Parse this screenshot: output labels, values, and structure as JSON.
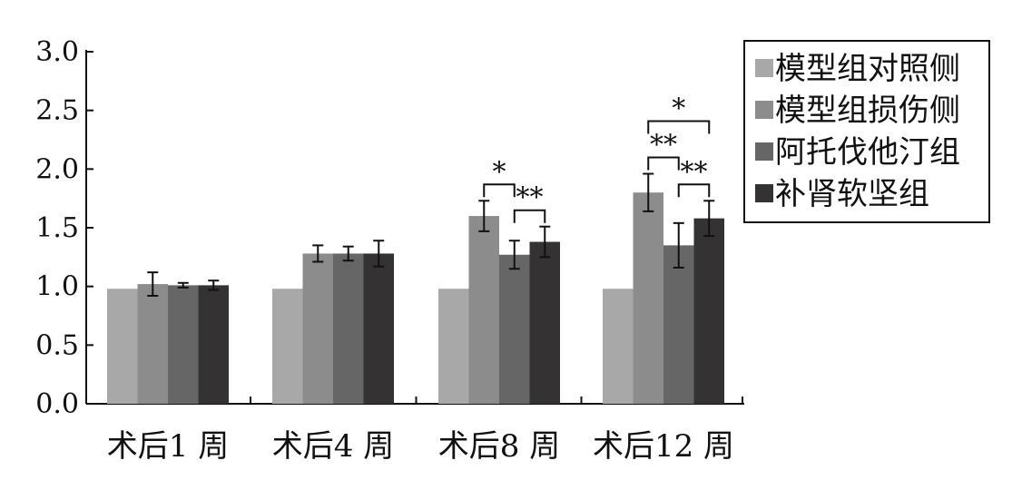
{
  "chart_data": {
    "type": "bar",
    "title": "",
    "xlabel": "",
    "ylabel": "",
    "ylim": [
      0,
      3.0
    ],
    "yticks": [
      "0.0",
      "0.5",
      "1.0",
      "1.5",
      "2.0",
      "2.5",
      "3.0"
    ],
    "categories": [
      "术后1 周",
      "术后4 周",
      "术后8 周",
      "术后12 周"
    ],
    "legend_position": "top-right",
    "series": [
      {
        "name": "模型组对照侧",
        "color": "#a8a8a8",
        "values": [
          0.98,
          0.98,
          0.98,
          0.98
        ],
        "errors": [
          0,
          0,
          0,
          0
        ]
      },
      {
        "name": "模型组损伤侧",
        "color": "#8c8c8c",
        "values": [
          1.02,
          1.28,
          1.6,
          1.8
        ],
        "errors": [
          0.1,
          0.07,
          0.13,
          0.16
        ]
      },
      {
        "name": "阿托伐他汀组",
        "color": "#666666",
        "values": [
          1.01,
          1.28,
          1.27,
          1.35
        ],
        "errors": [
          0.02,
          0.06,
          0.12,
          0.19
        ]
      },
      {
        "name": "补肾软坚组",
        "color": "#353233",
        "values": [
          1.01,
          1.28,
          1.38,
          1.58
        ],
        "errors": [
          0.04,
          0.11,
          0.13,
          0.15
        ]
      }
    ],
    "annotations": [
      {
        "category": 2,
        "from_series": 1,
        "to_series": 2,
        "text": "*"
      },
      {
        "category": 2,
        "from_series": 2,
        "to_series": 3,
        "text": "**"
      },
      {
        "category": 3,
        "from_series": 1,
        "to_series": 2,
        "text": "**"
      },
      {
        "category": 3,
        "from_series": 2,
        "to_series": 3,
        "text": "**"
      },
      {
        "category": 3,
        "from_series": 1,
        "to_series": 3,
        "text": "*"
      }
    ]
  }
}
